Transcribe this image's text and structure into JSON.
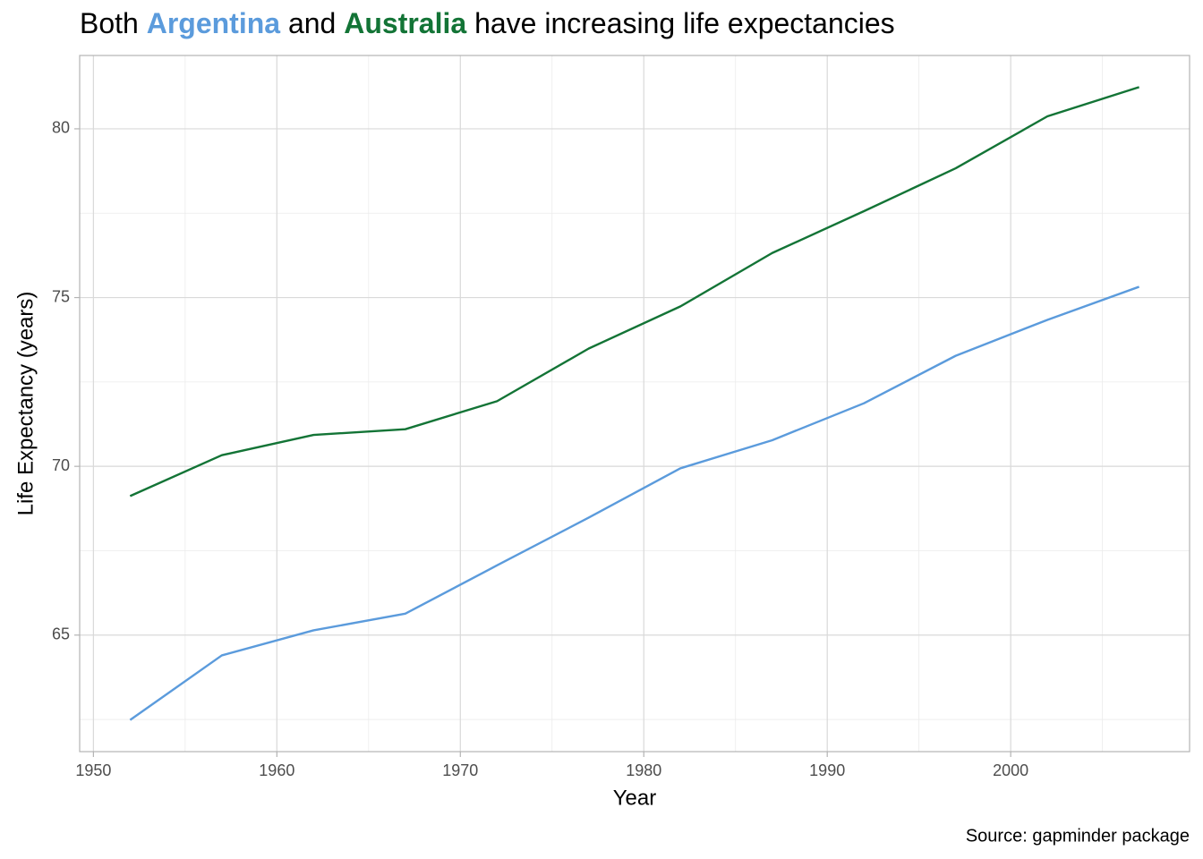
{
  "chart_data": {
    "type": "line",
    "title_parts": [
      "Both",
      "and",
      "have increasing life expectancies"
    ],
    "x_label": "Year",
    "y_label": "Life Expectancy (years)",
    "caption": "Source: gapminder package",
    "x": [
      1952,
      1957,
      1962,
      1967,
      1972,
      1977,
      1982,
      1987,
      1992,
      1997,
      2002,
      2007
    ],
    "series": [
      {
        "name": "Argentina",
        "color": "#5b9bdc",
        "values": [
          62.485,
          64.399,
          65.142,
          65.634,
          67.065,
          68.481,
          69.942,
          70.774,
          71.868,
          73.275,
          74.34,
          75.32
        ]
      },
      {
        "name": "Australia",
        "color": "#137436",
        "values": [
          69.12,
          70.33,
          70.93,
          71.1,
          71.93,
          73.49,
          74.74,
          76.32,
          77.56,
          78.83,
          80.37,
          81.235
        ]
      }
    ],
    "xlim": [
      1949.25,
      2009.75
    ],
    "ylim": [
      61.5475,
      82.1725
    ],
    "xticks": [
      1950,
      1960,
      1970,
      1980,
      1990,
      2000
    ],
    "yticks": [
      65,
      70,
      75,
      80
    ],
    "x_minor_grid": [
      1955,
      1965,
      1975,
      1985,
      1995,
      2005
    ],
    "y_minor_grid": [
      62.5,
      67.5,
      72.5,
      77.5
    ],
    "grid": true
  }
}
